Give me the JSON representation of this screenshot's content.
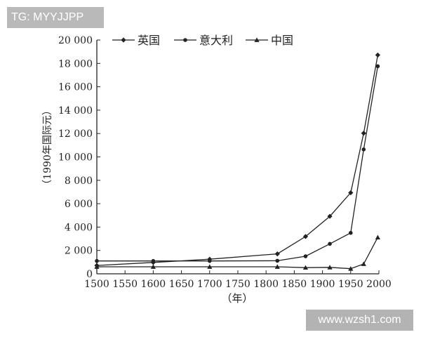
{
  "watermarks": {
    "top": "TG: MYYJJPP",
    "bottom": "www.wzsh1.com"
  },
  "colors": {
    "line": "#222222",
    "axis": "#222222",
    "watermark_bg_top": "#b9b9b9",
    "watermark_bg_bottom": "#b3b3b3"
  },
  "chart_data": {
    "type": "line",
    "title": "",
    "xlabel": "（年）",
    "ylabel": "（1990年国际元）",
    "xlim": [
      1500,
      2000
    ],
    "ylim": [
      0,
      20000
    ],
    "xticks": [
      1500,
      1550,
      1600,
      1650,
      1700,
      1750,
      1800,
      1850,
      1900,
      1950,
      2000
    ],
    "xtick_labels": [
      "1500",
      "1550",
      "1600",
      "1650",
      "1700",
      "1750",
      "1800",
      "1850",
      "1900",
      "1950",
      "2000"
    ],
    "yticks": [
      0,
      2000,
      4000,
      6000,
      8000,
      10000,
      12000,
      14000,
      16000,
      18000,
      20000
    ],
    "ytick_labels": [
      "0",
      "2 000",
      "4 000",
      "6 000",
      "8 000",
      "10 000",
      "12 000",
      "14 000",
      "16 000",
      "18 000",
      "20 000"
    ],
    "grid": false,
    "legend_position": "top-center",
    "series": [
      {
        "name": "英国",
        "marker": "diamond",
        "points": [
          [
            1500,
            714
          ],
          [
            1600,
            974
          ],
          [
            1700,
            1250
          ],
          [
            1820,
            1706
          ],
          [
            1870,
            3190
          ],
          [
            1913,
            4921
          ],
          [
            1950,
            6939
          ],
          [
            1973,
            12025
          ],
          [
            1998,
            18714
          ]
        ]
      },
      {
        "name": "意大利",
        "marker": "circle",
        "points": [
          [
            1500,
            1100
          ],
          [
            1600,
            1100
          ],
          [
            1700,
            1100
          ],
          [
            1820,
            1117
          ],
          [
            1870,
            1499
          ],
          [
            1913,
            2564
          ],
          [
            1950,
            3502
          ],
          [
            1973,
            10643
          ],
          [
            1998,
            17759
          ]
        ]
      },
      {
        "name": "中国",
        "marker": "triangle",
        "points": [
          [
            1500,
            600
          ],
          [
            1600,
            600
          ],
          [
            1700,
            600
          ],
          [
            1820,
            600
          ],
          [
            1870,
            530
          ],
          [
            1913,
            552
          ],
          [
            1950,
            439
          ],
          [
            1973,
            839
          ],
          [
            1998,
            3117
          ]
        ]
      }
    ]
  }
}
